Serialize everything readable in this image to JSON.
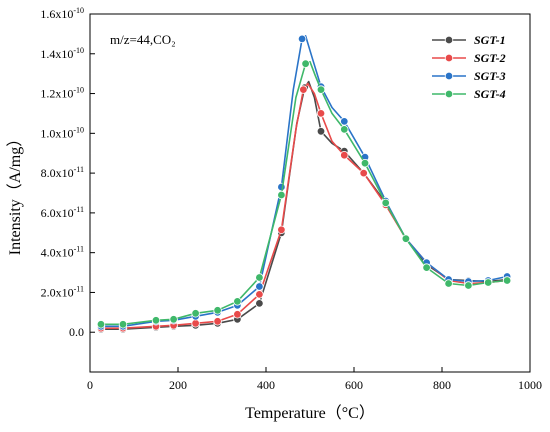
{
  "chart_data": {
    "type": "line",
    "annotation": "m/z=44,CO₂",
    "xlabel": "Temperature（°C）",
    "ylabel": "Intensity（A/mg）",
    "xlim": [
      0,
      1000
    ],
    "ylim": [
      -2e-11,
      1.6e-10
    ],
    "x_ticks": [
      0,
      200,
      400,
      600,
      800,
      1000
    ],
    "x_tick_labels": [
      "0",
      "200",
      "400",
      "600",
      "800",
      "1000"
    ],
    "y_ticks": [
      0,
      2e-11,
      4e-11,
      6e-11,
      8e-11,
      1e-10,
      1.2e-10,
      1.4e-10,
      1.6e-10
    ],
    "y_tick_labels": [
      {
        "mantissa": "0.0",
        "exp": ""
      },
      {
        "mantissa": "2.0x10",
        "exp": "-11"
      },
      {
        "mantissa": "4.0x10",
        "exp": "-11"
      },
      {
        "mantissa": "6.0x10",
        "exp": "-11"
      },
      {
        "mantissa": "8.0x10",
        "exp": "-11"
      },
      {
        "mantissa": "1.0x10",
        "exp": "-10"
      },
      {
        "mantissa": "1.2x10",
        "exp": "-10"
      },
      {
        "mantissa": "1.4x10",
        "exp": "-10"
      },
      {
        "mantissa": "1.6x10",
        "exp": "-10"
      }
    ],
    "legend_position": "top-right",
    "series": [
      {
        "name": "SGT-1",
        "color": "#4a4a4a",
        "markers": [
          [
            25,
            1.5e-12
          ],
          [
            75,
            1.5e-12
          ],
          [
            150,
            2.5e-12
          ],
          [
            190,
            3e-12
          ],
          [
            240,
            3.5e-12
          ],
          [
            290,
            4.5e-12
          ],
          [
            335,
            6.5e-12
          ],
          [
            385,
            1.45e-11
          ],
          [
            435,
            5e-11
          ],
          [
            488,
            1.23e-10
          ],
          [
            525,
            1.01e-10
          ],
          [
            578,
            9.1e-11
          ],
          [
            622,
            8e-11
          ],
          [
            672,
            6.5e-11
          ],
          [
            718,
            4.7e-11
          ],
          [
            765,
            3.4e-11
          ],
          [
            815,
            2.65e-11
          ],
          [
            860,
            2.6e-11
          ],
          [
            905,
            2.55e-11
          ],
          [
            948,
            2.65e-11
          ]
        ],
        "line": [
          [
            25,
            1.5e-12
          ],
          [
            75,
            1.5e-12
          ],
          [
            150,
            2.5e-12
          ],
          [
            190,
            3e-12
          ],
          [
            240,
            3.5e-12
          ],
          [
            290,
            4.5e-12
          ],
          [
            335,
            6.5e-12
          ],
          [
            385,
            1.45e-11
          ],
          [
            435,
            5e-11
          ],
          [
            470,
            1.05e-10
          ],
          [
            488,
            1.23e-10
          ],
          [
            497,
            1.26e-10
          ],
          [
            510,
            1.18e-10
          ],
          [
            525,
            1.01e-10
          ],
          [
            550,
            9.5e-11
          ],
          [
            578,
            9.1e-11
          ],
          [
            622,
            8e-11
          ],
          [
            672,
            6.5e-11
          ],
          [
            718,
            4.7e-11
          ],
          [
            765,
            3.4e-11
          ],
          [
            815,
            2.65e-11
          ],
          [
            860,
            2.6e-11
          ],
          [
            905,
            2.55e-11
          ],
          [
            948,
            2.65e-11
          ]
        ]
      },
      {
        "name": "SGT-2",
        "color": "#e84a4a",
        "markers": [
          [
            25,
            2e-12
          ],
          [
            75,
            2e-12
          ],
          [
            150,
            3e-12
          ],
          [
            190,
            3.5e-12
          ],
          [
            240,
            4.5e-12
          ],
          [
            290,
            5.5e-12
          ],
          [
            335,
            9e-12
          ],
          [
            385,
            1.9e-11
          ],
          [
            435,
            5.15e-11
          ],
          [
            485,
            1.22e-10
          ],
          [
            525,
            1.1e-10
          ],
          [
            578,
            8.9e-11
          ],
          [
            622,
            8e-11
          ],
          [
            672,
            6.4e-11
          ],
          [
            718,
            4.7e-11
          ],
          [
            765,
            3.5e-11
          ],
          [
            815,
            2.6e-11
          ],
          [
            860,
            2.45e-11
          ],
          [
            905,
            2.5e-11
          ],
          [
            948,
            2.6e-11
          ]
        ],
        "line": [
          [
            25,
            2e-12
          ],
          [
            75,
            2e-12
          ],
          [
            150,
            3e-12
          ],
          [
            190,
            3.5e-12
          ],
          [
            240,
            4.5e-12
          ],
          [
            290,
            5.5e-12
          ],
          [
            335,
            9e-12
          ],
          [
            385,
            1.9e-11
          ],
          [
            435,
            5.15e-11
          ],
          [
            468,
            1.02e-10
          ],
          [
            485,
            1.22e-10
          ],
          [
            495,
            1.25e-10
          ],
          [
            510,
            1.2e-10
          ],
          [
            525,
            1.1e-10
          ],
          [
            550,
            9.6e-11
          ],
          [
            578,
            8.9e-11
          ],
          [
            622,
            8e-11
          ],
          [
            672,
            6.4e-11
          ],
          [
            718,
            4.7e-11
          ],
          [
            765,
            3.5e-11
          ],
          [
            815,
            2.6e-11
          ],
          [
            860,
            2.45e-11
          ],
          [
            905,
            2.5e-11
          ],
          [
            948,
            2.6e-11
          ]
        ]
      },
      {
        "name": "SGT-3",
        "color": "#2a74c8",
        "markers": [
          [
            25,
            3e-12
          ],
          [
            75,
            3e-12
          ],
          [
            150,
            5.5e-12
          ],
          [
            190,
            6e-12
          ],
          [
            240,
            8e-12
          ],
          [
            290,
            1e-11
          ],
          [
            335,
            1.35e-11
          ],
          [
            385,
            2.3e-11
          ],
          [
            435,
            7.3e-11
          ],
          [
            482,
            1.475e-10
          ],
          [
            525,
            1.235e-10
          ],
          [
            578,
            1.06e-10
          ],
          [
            625,
            8.8e-11
          ],
          [
            672,
            6.6e-11
          ],
          [
            718,
            4.7e-11
          ],
          [
            765,
            3.5e-11
          ],
          [
            815,
            2.65e-11
          ],
          [
            860,
            2.55e-11
          ],
          [
            905,
            2.6e-11
          ],
          [
            948,
            2.8e-11
          ]
        ],
        "line": [
          [
            25,
            3e-12
          ],
          [
            75,
            3e-12
          ],
          [
            150,
            5.5e-12
          ],
          [
            190,
            6e-12
          ],
          [
            240,
            8e-12
          ],
          [
            290,
            1e-11
          ],
          [
            335,
            1.35e-11
          ],
          [
            385,
            2.3e-11
          ],
          [
            435,
            7.3e-11
          ],
          [
            462,
            1.22e-10
          ],
          [
            482,
            1.475e-10
          ],
          [
            490,
            1.49e-10
          ],
          [
            505,
            1.38e-10
          ],
          [
            525,
            1.235e-10
          ],
          [
            550,
            1.13e-10
          ],
          [
            578,
            1.06e-10
          ],
          [
            625,
            8.8e-11
          ],
          [
            672,
            6.6e-11
          ],
          [
            718,
            4.7e-11
          ],
          [
            765,
            3.5e-11
          ],
          [
            815,
            2.65e-11
          ],
          [
            860,
            2.55e-11
          ],
          [
            905,
            2.6e-11
          ],
          [
            948,
            2.8e-11
          ]
        ]
      },
      {
        "name": "SGT-4",
        "color": "#3fb86a",
        "markers": [
          [
            25,
            4e-12
          ],
          [
            75,
            4e-12
          ],
          [
            150,
            6e-12
          ],
          [
            190,
            6.5e-12
          ],
          [
            240,
            9.5e-12
          ],
          [
            290,
            1.1e-11
          ],
          [
            335,
            1.55e-11
          ],
          [
            385,
            2.75e-11
          ],
          [
            435,
            6.9e-11
          ],
          [
            490,
            1.35e-10
          ],
          [
            525,
            1.22e-10
          ],
          [
            578,
            1.02e-10
          ],
          [
            625,
            8.5e-11
          ],
          [
            672,
            6.5e-11
          ],
          [
            718,
            4.7e-11
          ],
          [
            765,
            3.25e-11
          ],
          [
            815,
            2.45e-11
          ],
          [
            860,
            2.35e-11
          ],
          [
            905,
            2.5e-11
          ],
          [
            948,
            2.6e-11
          ]
        ],
        "line": [
          [
            25,
            4e-12
          ],
          [
            75,
            4e-12
          ],
          [
            150,
            6e-12
          ],
          [
            190,
            6.5e-12
          ],
          [
            240,
            9.5e-12
          ],
          [
            290,
            1.1e-11
          ],
          [
            335,
            1.55e-11
          ],
          [
            385,
            2.75e-11
          ],
          [
            435,
            6.9e-11
          ],
          [
            468,
            1.18e-10
          ],
          [
            490,
            1.35e-10
          ],
          [
            500,
            1.36e-10
          ],
          [
            512,
            1.29e-10
          ],
          [
            525,
            1.22e-10
          ],
          [
            550,
            1.1e-10
          ],
          [
            578,
            1.02e-10
          ],
          [
            625,
            8.5e-11
          ],
          [
            672,
            6.5e-11
          ],
          [
            718,
            4.7e-11
          ],
          [
            765,
            3.25e-11
          ],
          [
            815,
            2.45e-11
          ],
          [
            860,
            2.35e-11
          ],
          [
            905,
            2.5e-11
          ],
          [
            948,
            2.6e-11
          ]
        ]
      }
    ]
  }
}
